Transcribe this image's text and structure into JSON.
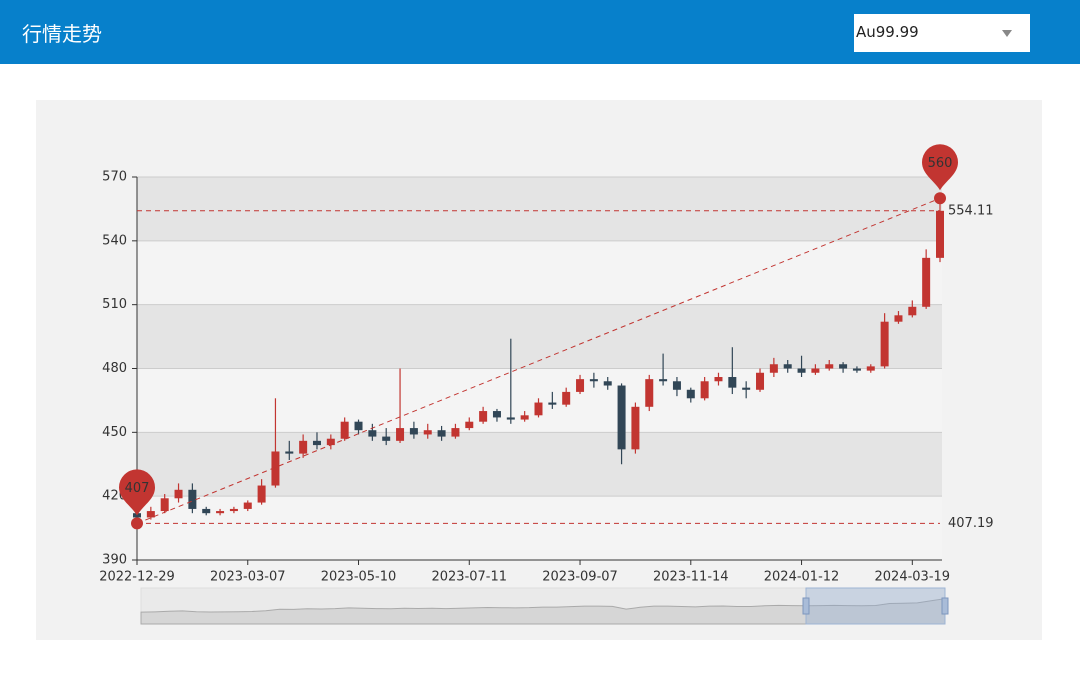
{
  "header": {
    "title": "行情走势",
    "selector": "Au99.99"
  },
  "chart_data": {
    "type": "candlestick",
    "categories": [
      "2022-12-29",
      null,
      null,
      null,
      null,
      null,
      null,
      null,
      "2023-03-07",
      null,
      null,
      null,
      null,
      null,
      null,
      null,
      "2023-05-10",
      null,
      null,
      null,
      null,
      null,
      null,
      null,
      "2023-07-11",
      null,
      null,
      null,
      null,
      null,
      null,
      null,
      "2023-09-07",
      null,
      null,
      null,
      null,
      null,
      null,
      null,
      "2023-11-14",
      null,
      null,
      null,
      null,
      null,
      null,
      null,
      "2024-01-12",
      null,
      null,
      null,
      null,
      null,
      null,
      null,
      "2024-03-19",
      null,
      null
    ],
    "open": [
      412,
      410,
      413,
      419,
      423,
      414,
      412,
      413,
      414,
      417,
      425,
      441,
      440,
      446,
      444,
      447,
      455,
      451,
      448,
      446,
      452,
      449,
      451,
      448,
      452,
      455,
      460,
      457,
      456,
      458,
      464,
      463,
      469,
      475,
      474,
      472,
      442,
      462,
      475,
      474,
      470,
      466,
      474,
      476,
      471,
      470,
      478,
      482,
      480,
      478,
      480,
      482,
      480,
      479,
      481,
      502,
      505,
      509,
      532
    ],
    "close": [
      410,
      413,
      419,
      423,
      414,
      412,
      413,
      414,
      417,
      425,
      441,
      440,
      446,
      444,
      447,
      455,
      451,
      448,
      446,
      452,
      449,
      451,
      448,
      452,
      455,
      460,
      457,
      456,
      458,
      464,
      463,
      469,
      475,
      474,
      472,
      442,
      462,
      475,
      474,
      470,
      466,
      474,
      476,
      471,
      470,
      478,
      482,
      480,
      478,
      480,
      482,
      480,
      479,
      481,
      502,
      505,
      509,
      532,
      554.11
    ],
    "low": [
      407.19,
      409,
      412,
      417,
      412,
      411,
      411,
      412,
      413,
      416,
      424,
      437,
      438,
      442,
      442,
      446,
      449,
      446,
      444,
      445,
      447,
      447,
      446,
      447,
      451,
      454,
      455,
      454,
      455,
      457,
      461,
      462,
      468,
      471,
      470,
      435,
      440,
      460,
      472,
      467,
      464,
      465,
      472,
      468,
      466,
      469,
      476,
      478,
      476,
      477,
      479,
      478,
      478,
      478,
      480,
      501,
      504,
      508,
      530
    ],
    "high": [
      414,
      415,
      421,
      426,
      426,
      415,
      414,
      415,
      418,
      428,
      466,
      446,
      449,
      450,
      449,
      457,
      456,
      454,
      452,
      480,
      455,
      454,
      453,
      454,
      457,
      462,
      461,
      494,
      460,
      466,
      469,
      471,
      477,
      478,
      476,
      473,
      464,
      477,
      487,
      476,
      471,
      476,
      478,
      490,
      474,
      480,
      485,
      484,
      486,
      482,
      484,
      483,
      481,
      482,
      506,
      507,
      512,
      536,
      560
    ],
    "up_color": "#c23531",
    "down_color": "#314656",
    "mark_points": [
      {
        "value": 407.19,
        "label": "407"
      },
      {
        "value": 560,
        "label": "560"
      }
    ],
    "mark_lines": [
      407.19,
      554.11
    ],
    "ylim": [
      390,
      570
    ],
    "yticks": [
      390,
      420,
      450,
      480,
      510,
      540,
      570
    ],
    "grid": true
  }
}
